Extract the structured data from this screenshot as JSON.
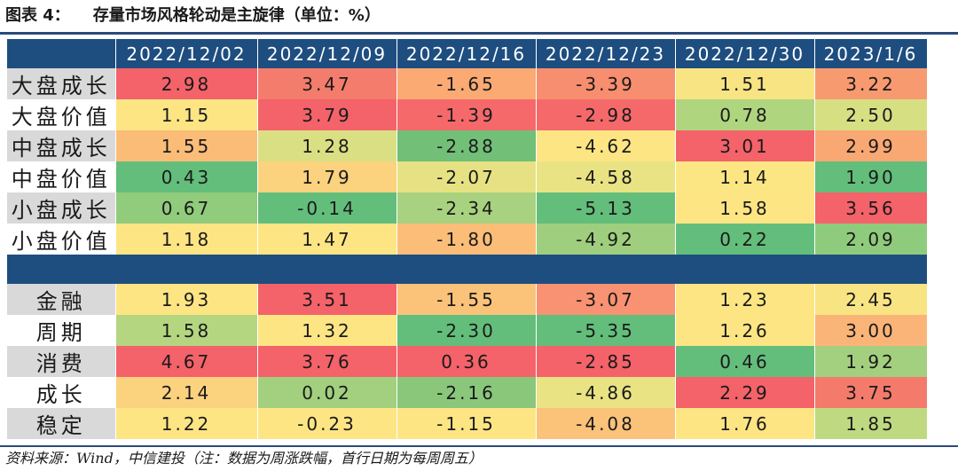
{
  "figure": {
    "label": "图表 4：",
    "title": "存量市场风格轮动是主旋律（单位：%）"
  },
  "source": "资料来源：Wind，中信建投（注：数据为周涨跌幅，首行日期为每周周五）",
  "table": {
    "columns": [
      "2022/12/02",
      "2022/12/09",
      "2022/12/16",
      "2022/12/23",
      "2022/12/30",
      "2023/1/6"
    ],
    "section1": [
      {
        "label": "大盘成长",
        "values": [
          "2.98",
          "3.47",
          "-1.65",
          "-3.39",
          "1.51",
          "3.22"
        ],
        "colors": [
          "#f4626a",
          "#f47c6c",
          "#fbaa74",
          "#f78e6f",
          "#f8e482",
          "#f89a70"
        ]
      },
      {
        "label": "大盘价值",
        "values": [
          "1.15",
          "3.79",
          "-1.39",
          "-2.98",
          "0.78",
          "2.50"
        ],
        "colors": [
          "#fde584",
          "#f4626a",
          "#f5696b",
          "#f5696b",
          "#b0d57f",
          "#d6e082"
        ]
      },
      {
        "label": "中盘成长",
        "values": [
          "1.55",
          "1.28",
          "-2.88",
          "-4.62",
          "3.01",
          "2.99"
        ],
        "colors": [
          "#fbbc78",
          "#d9df82",
          "#72bf78",
          "#fde584",
          "#f4626a",
          "#f9a874"
        ]
      },
      {
        "label": "中盘价值",
        "values": [
          "0.43",
          "1.79",
          "-2.07",
          "-4.58",
          "1.14",
          "1.90"
        ],
        "colors": [
          "#63be7b",
          "#fbd27e",
          "#e6e283",
          "#e9e383",
          "#fbe683",
          "#63be7b"
        ]
      },
      {
        "label": "小盘成长",
        "values": [
          "0.67",
          "-0.14",
          "-2.34",
          "-5.13",
          "1.58",
          "3.56"
        ],
        "colors": [
          "#91cb7c",
          "#63be7b",
          "#a8d27f",
          "#63be7b",
          "#fde584",
          "#f4626a"
        ]
      },
      {
        "label": "小盘价值",
        "values": [
          "1.18",
          "1.47",
          "-1.80",
          "-4.92",
          "0.22",
          "2.09"
        ],
        "colors": [
          "#fde584",
          "#fde584",
          "#fbbd78",
          "#9fcf7e",
          "#63be7b",
          "#8fcb7c"
        ]
      }
    ],
    "section2": [
      {
        "label": "金融",
        "values": [
          "1.93",
          "3.51",
          "-1.55",
          "-3.07",
          "1.23",
          "2.45"
        ],
        "colors": [
          "#fde584",
          "#f4626a",
          "#fbc279",
          "#f89272",
          "#fde584",
          "#f8e482"
        ]
      },
      {
        "label": "周期",
        "values": [
          "1.58",
          "1.32",
          "-2.30",
          "-5.35",
          "1.26",
          "3.00"
        ],
        "colors": [
          "#b5d680",
          "#fde584",
          "#63be7b",
          "#63be7b",
          "#fde584",
          "#fbb478"
        ]
      },
      {
        "label": "消费",
        "values": [
          "4.67",
          "3.76",
          "0.36",
          "-2.85",
          "0.46",
          "1.92"
        ],
        "colors": [
          "#f4626a",
          "#f4626a",
          "#f4626a",
          "#f4626a",
          "#63be7b",
          "#a3d07e"
        ]
      },
      {
        "label": "成长",
        "values": [
          "2.14",
          "0.02",
          "-2.16",
          "-4.86",
          "2.29",
          "3.75"
        ],
        "colors": [
          "#fbd27e",
          "#a3d07e",
          "#8ac77b",
          "#e9e383",
          "#f4626a",
          "#f47b6c"
        ]
      },
      {
        "label": "稳定",
        "values": [
          "1.22",
          "-0.23",
          "-1.15",
          "-4.08",
          "1.76",
          "1.85"
        ],
        "colors": [
          "#fde584",
          "#fde584",
          "#fde584",
          "#fbc279",
          "#fde584",
          "#bfd981"
        ]
      }
    ]
  }
}
